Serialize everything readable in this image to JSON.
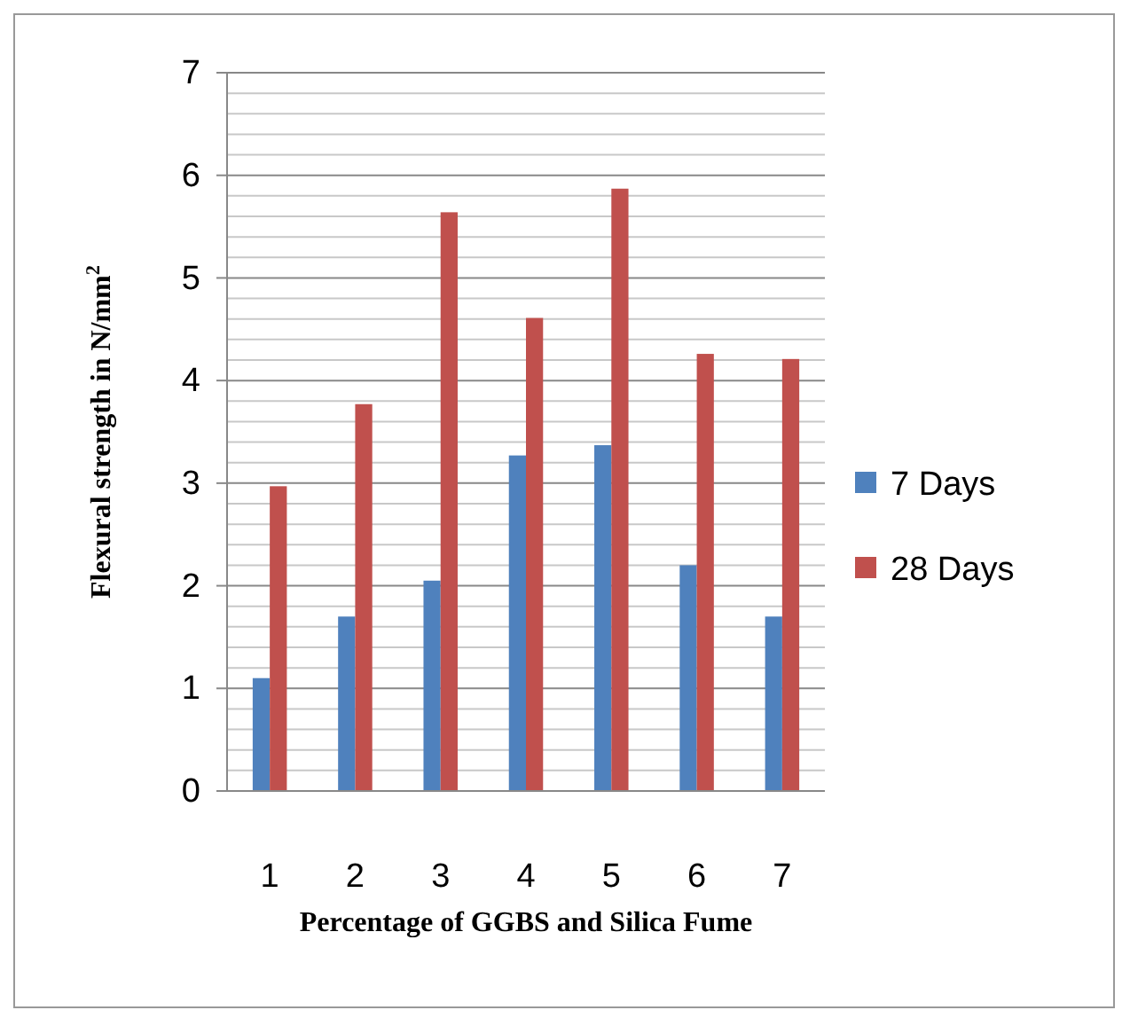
{
  "chart_data": {
    "type": "bar",
    "categories": [
      "1",
      "2",
      "3",
      "4",
      "5",
      "6",
      "7"
    ],
    "series": [
      {
        "name": "7 Days",
        "color": "#4f81bd",
        "values": [
          1.1,
          1.7,
          2.05,
          3.27,
          3.37,
          2.2,
          1.7
        ]
      },
      {
        "name": "28 Days",
        "color": "#c0504d",
        "values": [
          2.97,
          3.77,
          5.64,
          4.61,
          5.87,
          4.26,
          4.21
        ]
      }
    ],
    "xlabel": "Percentage of GGBS and Silica Fume",
    "ylabel": "Flexural strength in N/mm$^{2}$",
    "ylim": [
      0,
      7
    ],
    "yticks": [
      0,
      {
        "value": 0.2,
        "label": null
      },
      {
        "value": 0.4,
        "label": null
      },
      {
        "value": 0.6,
        "label": null
      },
      {
        "value": 0.8,
        "label": null
      },
      1,
      {
        "value": 1.2,
        "label": null
      },
      {
        "value": 1.4,
        "label": null
      },
      {
        "value": 1.6,
        "label": null
      },
      {
        "value": 1.8,
        "label": null
      },
      2,
      {
        "value": 2.2,
        "label": null
      },
      {
        "value": 2.4,
        "label": null
      },
      {
        "value": 2.6,
        "label": null
      },
      {
        "value": 2.8,
        "label": null
      },
      3,
      {
        "value": 3.2,
        "label": null
      },
      {
        "value": 3.4,
        "label": null
      },
      {
        "value": 3.6,
        "label": null
      },
      {
        "value": 3.8,
        "label": null
      },
      4,
      {
        "value": 4.2,
        "label": null
      },
      {
        "value": 4.4,
        "label": null
      },
      {
        "value": 4.6,
        "label": null
      },
      {
        "value": 4.8,
        "label": null
      },
      5,
      {
        "value": 5.2,
        "label": null
      },
      {
        "value": 5.4,
        "label": null
      },
      {
        "value": 5.6,
        "label": null
      },
      {
        "value": 5.8,
        "label": null
      },
      6,
      {
        "value": 6.2,
        "label": null
      },
      {
        "value": 6.4,
        "label": null
      },
      {
        "value": 6.6,
        "label": null
      },
      {
        "value": 6.8,
        "label": null
      },
      7
    ],
    "grid": "y",
    "legend": "right"
  }
}
